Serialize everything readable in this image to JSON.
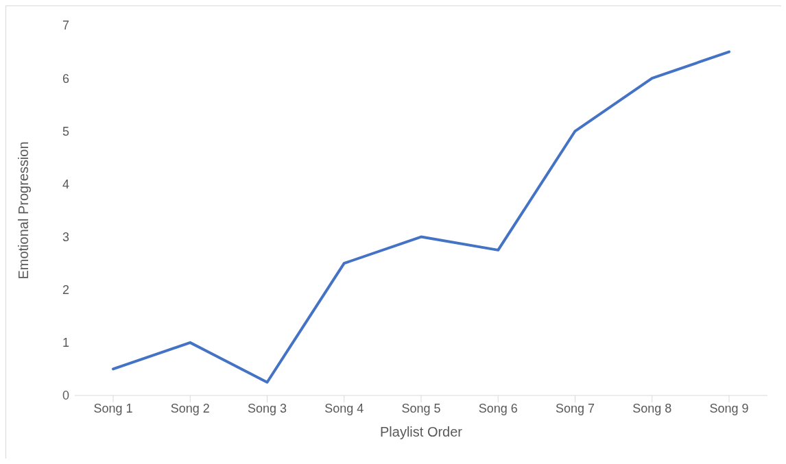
{
  "chart_data": {
    "type": "line",
    "xlabel": "Playlist Order",
    "ylabel": "Emotional Progression",
    "categories": [
      "Song 1",
      "Song 2",
      "Song 3",
      "Song 4",
      "Song 5",
      "Song 6",
      "Song 7",
      "Song 8",
      "Song 9"
    ],
    "series": [
      {
        "color": "#4472c4",
        "values": [
          0.5,
          1,
          0.25,
          2.5,
          3,
          2.75,
          5,
          6,
          6.5
        ]
      }
    ],
    "ylim": [
      0,
      7
    ],
    "yticks": [
      0,
      1,
      2,
      3,
      4,
      5,
      6,
      7
    ],
    "marker": "none",
    "line_style": "solid"
  }
}
